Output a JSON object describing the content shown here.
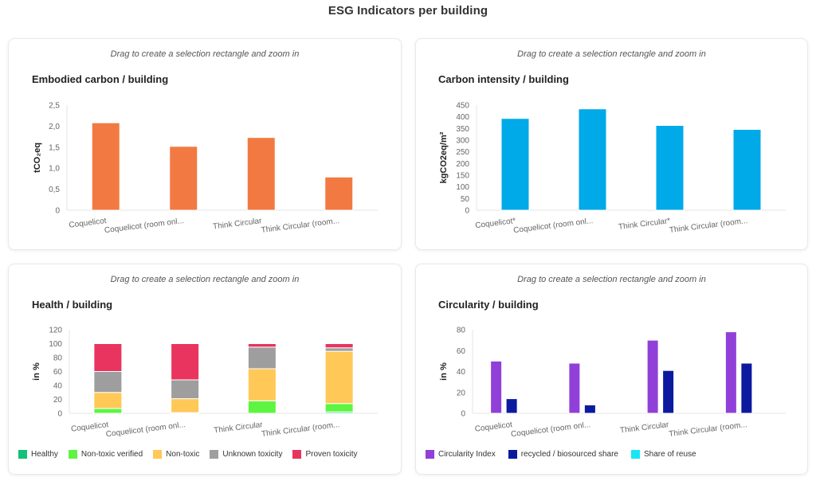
{
  "page": {
    "title": "ESG Indicators per building"
  },
  "cards": [
    {
      "hint": "Drag to create a selection rectangle and zoom in"
    },
    {
      "hint": "Drag to create a selection rectangle and zoom in"
    },
    {
      "hint": "Drag to create a selection rectangle and zoom in"
    },
    {
      "hint": "Drag to create a selection rectangle and zoom in"
    }
  ],
  "chart_data": [
    {
      "type": "bar",
      "title": "Embodied carbon / building",
      "xlabel": "",
      "ylabel": "tCO₂eq",
      "ylim": [
        0,
        2.5
      ],
      "yticks": [
        0,
        0.5,
        1.0,
        1.5,
        2.0,
        2.5
      ],
      "ytick_labels": [
        "0",
        "0,5",
        "1,0",
        "1,5",
        "2,0",
        "2,5"
      ],
      "grid": false,
      "legend": null,
      "categories": [
        "Coquelicot",
        "Coquelicot (room onl...",
        "Think Circular",
        "Think Circular (room..."
      ],
      "series": [
        {
          "name": "Embodied carbon",
          "color": "#f27a42",
          "values": [
            2.08,
            1.52,
            1.73,
            0.79
          ]
        }
      ]
    },
    {
      "type": "bar",
      "title": "Carbon intensity / building",
      "xlabel": "",
      "ylabel": "kgCO2eq/m²",
      "ylim": [
        0,
        450
      ],
      "yticks": [
        0,
        50,
        100,
        150,
        200,
        250,
        300,
        350,
        400,
        450
      ],
      "ytick_labels": [
        "0",
        "50",
        "100",
        "150",
        "200",
        "250",
        "300",
        "350",
        "400",
        "450"
      ],
      "grid": false,
      "legend": null,
      "categories": [
        "Coquelicot*",
        "Coquelicot (room onl...",
        "Think Circular*",
        "Think Circular (room..."
      ],
      "series": [
        {
          "name": "Carbon intensity",
          "color": "#00a9e8",
          "values": [
            393,
            434,
            363,
            346
          ]
        }
      ]
    },
    {
      "type": "bar",
      "stacked": true,
      "title": "Health / building",
      "xlabel": "",
      "ylabel": "in %",
      "ylim": [
        0,
        120
      ],
      "yticks": [
        0,
        20,
        40,
        60,
        80,
        100,
        120
      ],
      "ytick_labels": [
        "0",
        "20",
        "40",
        "60",
        "80",
        "100",
        "120"
      ],
      "grid": false,
      "legend": "bottom-left",
      "categories": [
        "Coquelicot",
        "Coquelicot (room onl...",
        "Think Circular",
        "Think Circular (room..."
      ],
      "series": [
        {
          "name": "Healthy",
          "color": "#13c27a",
          "values": [
            0,
            0,
            0,
            2
          ]
        },
        {
          "name": "Non-toxic verified",
          "color": "#5ef542",
          "values": [
            7,
            1,
            18,
            12
          ]
        },
        {
          "name": "Non-toxic",
          "color": "#ffc857",
          "values": [
            23,
            20,
            46,
            75
          ]
        },
        {
          "name": "Unknown toxicity",
          "color": "#9e9e9e",
          "values": [
            30,
            27,
            31,
            5
          ]
        },
        {
          "name": "Proven toxicity",
          "color": "#e8345e",
          "values": [
            40,
            52,
            5,
            6
          ]
        }
      ]
    },
    {
      "type": "bar",
      "stacked": false,
      "title": "Circularity / building",
      "xlabel": "",
      "ylabel": "in %",
      "ylim": [
        0,
        80
      ],
      "yticks": [
        0,
        20,
        40,
        60,
        80
      ],
      "ytick_labels": [
        "0",
        "20",
        "40",
        "60",
        "80"
      ],
      "grid": false,
      "legend": "bottom-left",
      "categories": [
        "Coquelicot",
        "Coquelicot (room onl...",
        "Think Circular",
        "Think Circular (room..."
      ],
      "series": [
        {
          "name": "Circularity Index",
          "color": "#9040d8",
          "values": [
            50,
            48,
            70,
            78
          ]
        },
        {
          "name": "recycled / biosourced share",
          "color": "#0b1a9e",
          "values": [
            14,
            8,
            41,
            48
          ]
        },
        {
          "name": "Share of reuse",
          "color": "#18e6f5",
          "values": [
            0,
            0,
            0,
            0
          ]
        }
      ]
    }
  ]
}
